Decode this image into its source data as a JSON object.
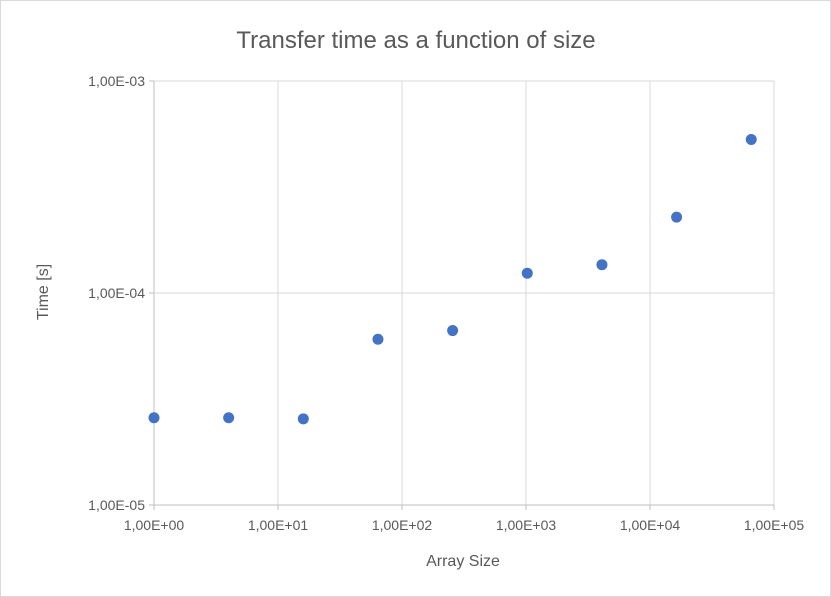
{
  "chart_data": {
    "type": "scatter",
    "title": "Transfer time as a function of size",
    "xlabel": "Array Size",
    "ylabel": "Time [s]",
    "x_scale": "log",
    "y_scale": "log",
    "xlim": [
      1,
      100000
    ],
    "ylim": [
      1e-05,
      0.001
    ],
    "x_tick_labels": [
      "1,00E+00",
      "1,00E+01",
      "1,00E+02",
      "1,00E+03",
      "1,00E+04",
      "1,00E+05"
    ],
    "y_tick_labels": [
      "1,00E-05",
      "1,00E-04",
      "1,00E-03"
    ],
    "grid": true,
    "legend": "none",
    "series": [
      {
        "color": "#4472c4",
        "points": [
          {
            "x": 1,
            "y": 2.58e-05
          },
          {
            "x": 4,
            "y": 2.58e-05
          },
          {
            "x": 16,
            "y": 2.55e-05
          },
          {
            "x": 64,
            "y": 6.05e-05
          },
          {
            "x": 256,
            "y": 6.65e-05
          },
          {
            "x": 1024,
            "y": 0.000124
          },
          {
            "x": 4096,
            "y": 0.000136
          },
          {
            "x": 16384,
            "y": 0.000228
          },
          {
            "x": 65536,
            "y": 0.00053
          }
        ]
      }
    ]
  }
}
